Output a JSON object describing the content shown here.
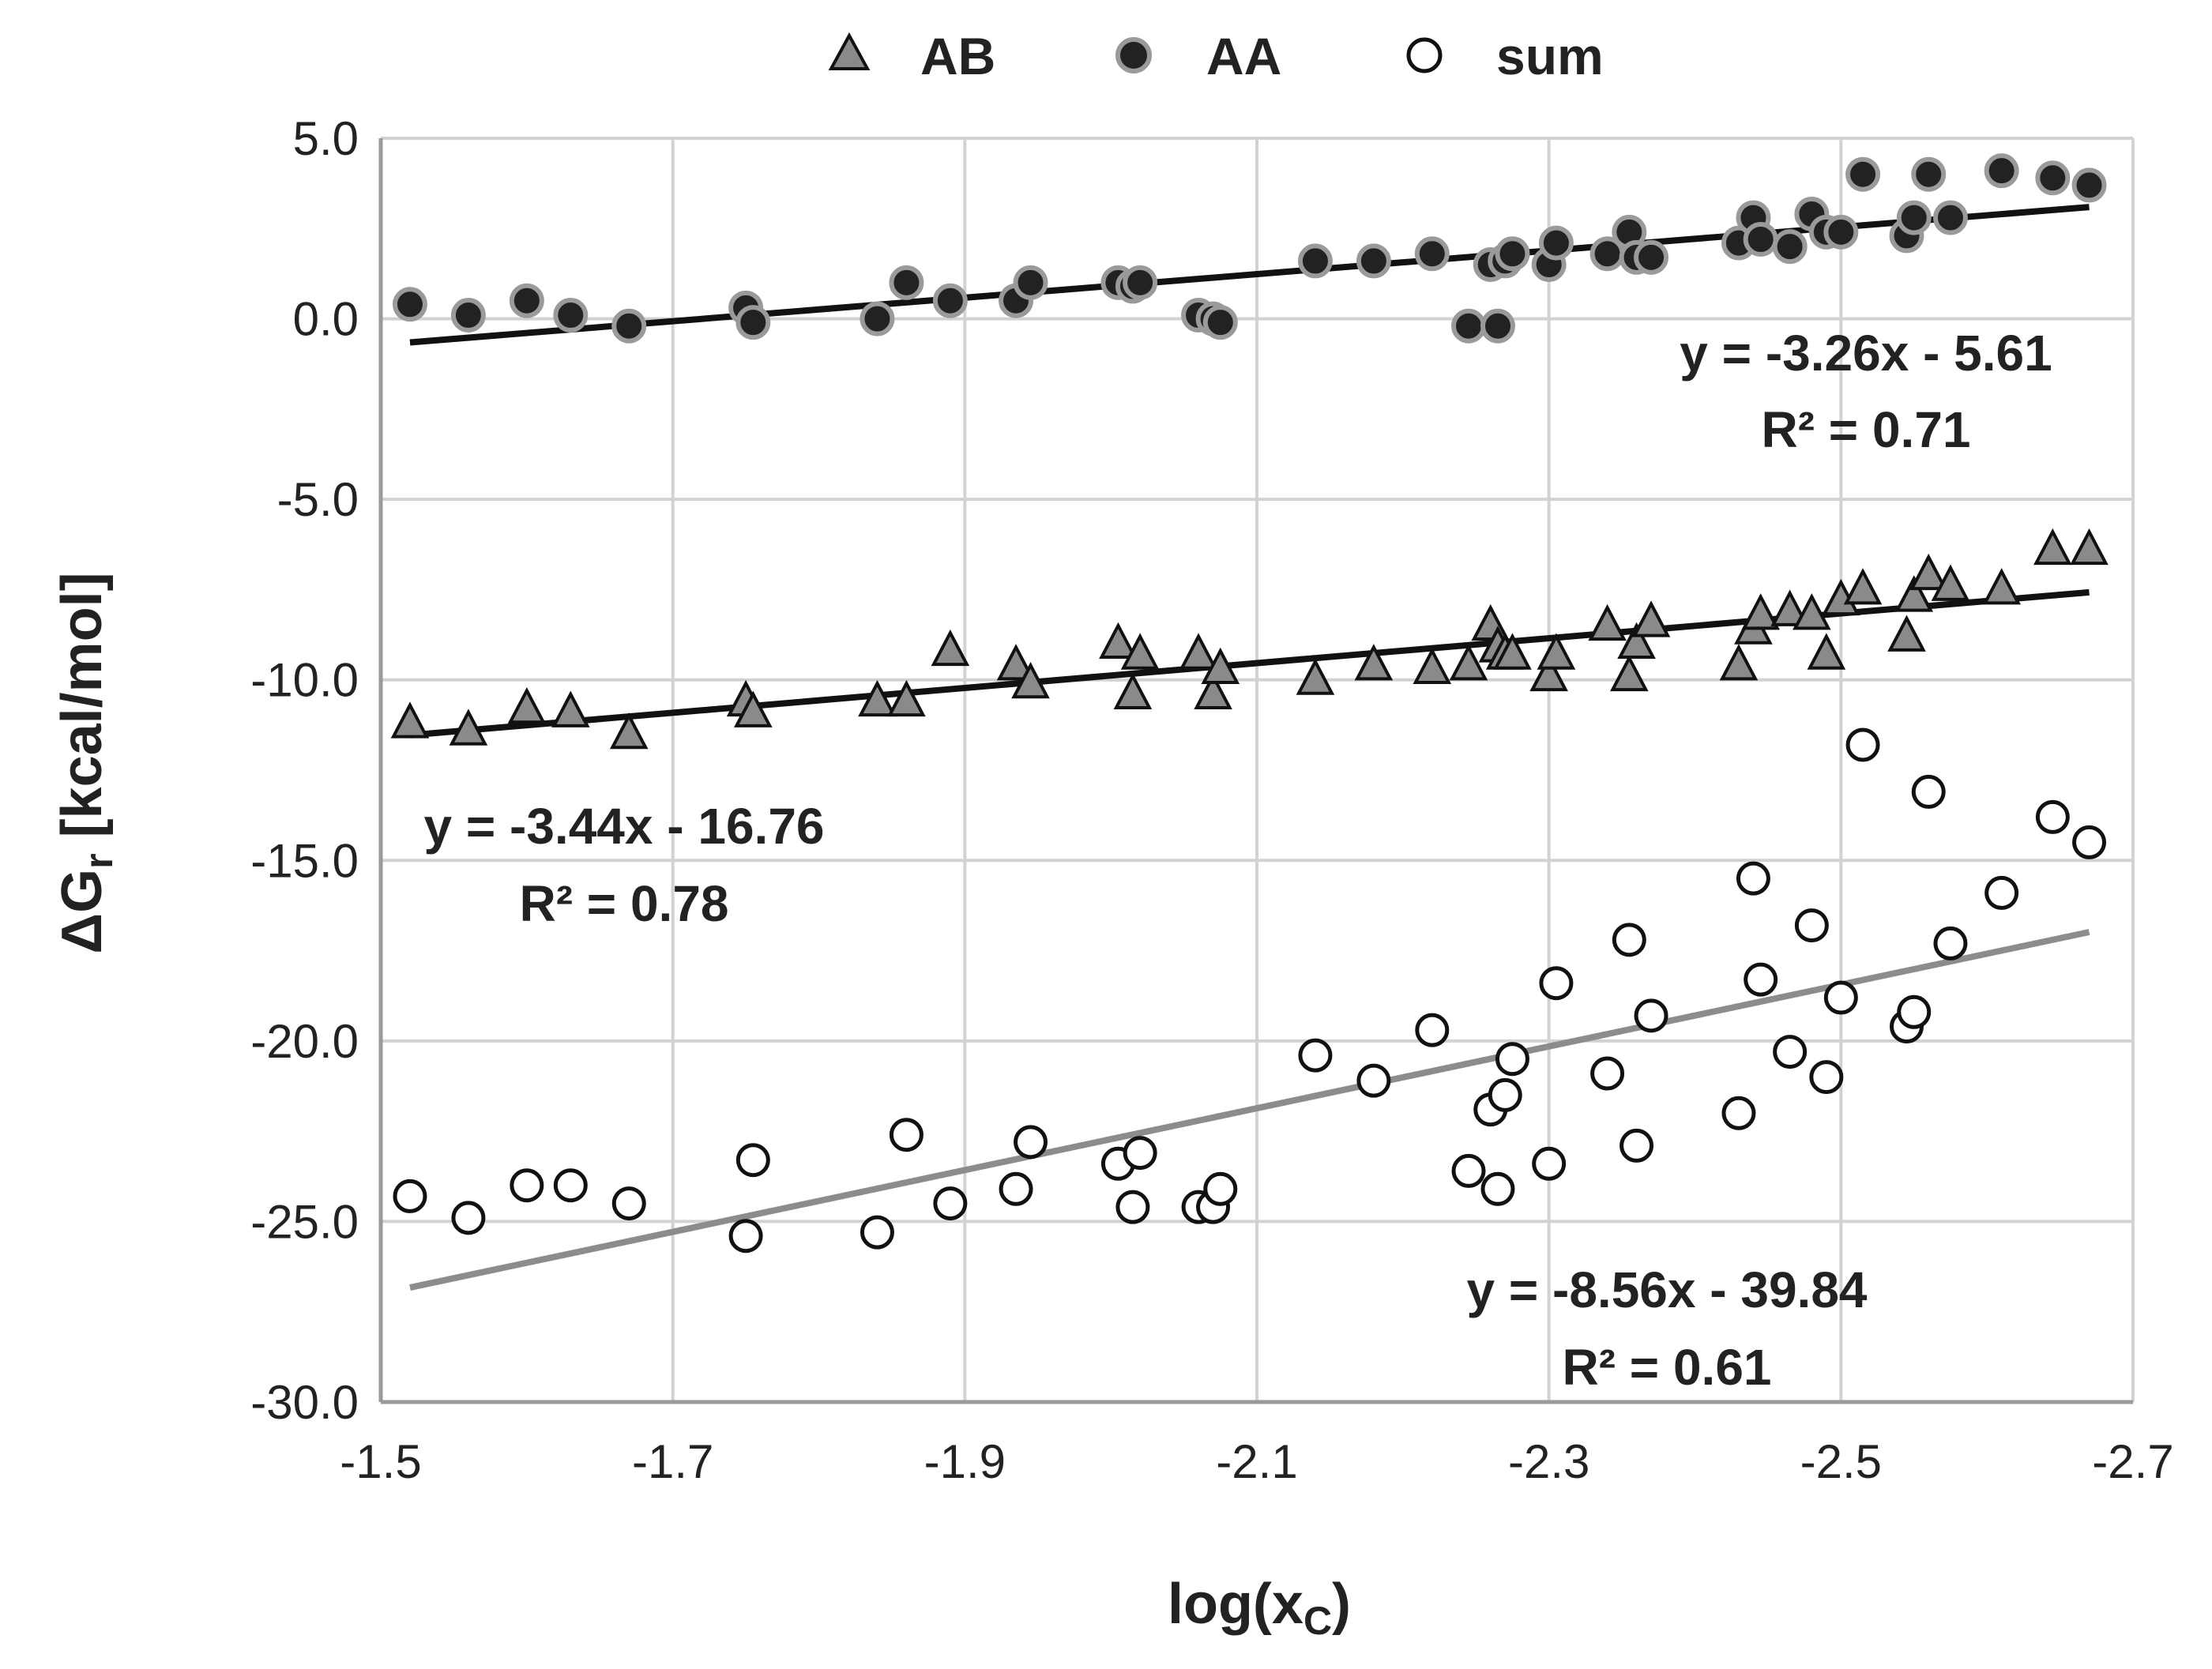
{
  "chart_data": {
    "type": "scatter",
    "title": "",
    "xlabel": "log(x_C)",
    "xlabel_main": "log(x",
    "xlabel_sub": "C",
    "xlabel_end": ")",
    "ylabel_main": "ΔG",
    "ylabel_sub": "r",
    "ylabel_end": " [kcal/mol]",
    "xlim": [
      -1.5,
      -2.7
    ],
    "ylim": [
      -30,
      5
    ],
    "x_ticks": [
      -1.5,
      -1.7,
      -1.9,
      -2.1,
      -2.3,
      -2.5,
      -2.7
    ],
    "x_tick_labels": [
      "-1.5",
      "-1.7",
      "-1.9",
      "-2.1",
      "-2.3",
      "-2.5",
      "-2.7"
    ],
    "y_ticks": [
      5,
      0,
      -5,
      -10,
      -15,
      -20,
      -25,
      -30
    ],
    "y_tick_labels": [
      "5.0",
      "0.0",
      "-5.0",
      "-10.0",
      "-15.0",
      "-20.0",
      "-25.0",
      "-30.0"
    ],
    "grid": true,
    "legend_position": "top",
    "x": [
      -1.52,
      -1.56,
      -1.6,
      -1.63,
      -1.67,
      -1.75,
      -1.755,
      -1.84,
      -1.86,
      -1.89,
      -1.935,
      -1.945,
      -2.005,
      -2.015,
      -2.02,
      -2.06,
      -2.07,
      -2.075,
      -2.14,
      -2.18,
      -2.22,
      -2.245,
      -2.26,
      -2.265,
      -2.27,
      -2.275,
      -2.3,
      -2.305,
      -2.34,
      -2.355,
      -2.36,
      -2.37,
      -2.43,
      -2.44,
      -2.445,
      -2.465,
      -2.48,
      -2.49,
      -2.5,
      -2.515,
      -2.545,
      -2.55,
      -2.56,
      -2.575,
      -2.61,
      -2.645,
      -2.67
    ],
    "series": [
      {
        "name": "AB",
        "marker": "triangle",
        "fill": "#8a8a8a",
        "values": [
          -11.2,
          -11.4,
          -10.8,
          -10.9,
          -11.5,
          -10.6,
          -10.9,
          -10.6,
          -10.6,
          -9.2,
          -9.6,
          -10.1,
          -9.0,
          -10.4,
          -9.3,
          -9.3,
          -10.4,
          -9.7,
          -10.0,
          -9.6,
          -9.7,
          -9.6,
          -8.5,
          -9.1,
          -9.3,
          -9.3,
          -9.9,
          -9.3,
          -8.5,
          -9.9,
          -9.0,
          -8.4,
          -9.6,
          -8.6,
          -8.2,
          -8.1,
          -8.2,
          -9.3,
          -7.8,
          -7.5,
          -8.8,
          -7.7,
          -7.1,
          -7.4,
          -7.5,
          -6.4,
          -6.4
        ]
      },
      {
        "name": "AA",
        "marker": "circle",
        "fill": "#222222",
        "values": [
          0.4,
          0.1,
          0.5,
          0.1,
          -0.2,
          0.3,
          -0.1,
          0.0,
          1.0,
          0.5,
          0.5,
          1.0,
          1.0,
          0.9,
          1.0,
          0.1,
          0.0,
          -0.1,
          1.6,
          1.6,
          1.8,
          -0.2,
          1.5,
          -0.2,
          1.6,
          1.8,
          1.5,
          2.1,
          1.8,
          2.4,
          1.7,
          1.7,
          2.1,
          2.8,
          2.2,
          2.0,
          2.9,
          2.4,
          2.4,
          4.0,
          2.3,
          2.8,
          4.0,
          2.8,
          4.1,
          3.9,
          3.7
        ]
      },
      {
        "name": "sum",
        "marker": "open-circle",
        "fill": "#ffffff",
        "values": [
          -24.3,
          -24.9,
          -24.0,
          -24.0,
          -24.5,
          -25.4,
          -23.3,
          -25.3,
          -22.6,
          -24.5,
          -24.1,
          -22.8,
          -23.4,
          -24.6,
          -23.1,
          -24.6,
          -24.6,
          -24.1,
          -20.4,
          -21.1,
          -19.7,
          -23.6,
          -21.9,
          -24.1,
          -21.5,
          -20.5,
          -23.4,
          -18.4,
          -20.9,
          -17.2,
          -22.9,
          -19.3,
          -22.0,
          -15.5,
          -18.3,
          -20.3,
          -16.8,
          -21.0,
          -18.8,
          -11.8,
          -19.6,
          -19.2,
          -13.1,
          -17.3,
          -15.9,
          -13.8,
          -14.5
        ]
      }
    ],
    "trendlines": [
      {
        "series": "AA",
        "slope": -3.26,
        "intercept": -5.61,
        "color": "#111111",
        "equation": "y = -3.26x - 5.61",
        "r2": "R² = 0.71"
      },
      {
        "series": "AB",
        "slope": -3.44,
        "intercept": -16.76,
        "color": "#111111",
        "equation": "y = -3.44x - 16.76",
        "r2": "R² = 0.78"
      },
      {
        "series": "sum",
        "slope": -8.56,
        "intercept": -39.84,
        "color": "#8c8c8c",
        "equation": "y = -8.56x - 39.84",
        "r2": "R² = 0.61"
      }
    ]
  }
}
